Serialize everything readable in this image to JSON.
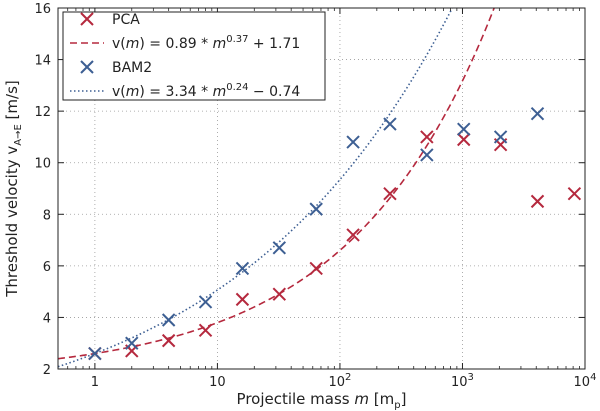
{
  "chart_data": {
    "type": "scatter",
    "x_scale": "log",
    "xlim": [
      0.5,
      10000
    ],
    "ylim": [
      2,
      16
    ],
    "grid": true,
    "legend_placement": "top-left",
    "xlabel": "Projectile mass m [m_p]",
    "ylabel": "Threshold velocity v_{A→E} [m/s]",
    "x_ticks": [
      1,
      10,
      100,
      1000,
      10000
    ],
    "x_tick_labels": [
      "1",
      "10",
      "10^2",
      "10^3",
      "10^4"
    ],
    "y_ticks": [
      2,
      4,
      6,
      8,
      10,
      12,
      14,
      16
    ],
    "series": [
      {
        "name": "PCA",
        "marker": "x",
        "color": "#b5293e",
        "x": [
          1,
          2,
          4,
          8,
          16,
          32,
          64,
          128,
          256,
          512,
          1024,
          2048,
          4096,
          8192
        ],
        "y": [
          2.6,
          2.7,
          3.1,
          3.5,
          4.7,
          4.9,
          5.9,
          7.2,
          8.8,
          11.0,
          10.9,
          10.7,
          8.5,
          8.8
        ]
      },
      {
        "name": "BAM2",
        "marker": "x",
        "color": "#3d5f93",
        "x": [
          1,
          2,
          4,
          8,
          16,
          32,
          64,
          128,
          256,
          512,
          1024,
          2048,
          4096
        ],
        "y": [
          2.6,
          3.0,
          3.9,
          4.6,
          5.9,
          6.7,
          8.2,
          10.8,
          11.5,
          10.3,
          11.3,
          11.0,
          11.9
        ]
      }
    ],
    "fits": [
      {
        "label": "v(m) = 0.89 * m^0.37 + 1.71",
        "style": "dashed",
        "color": "#b5293e",
        "a": 0.89,
        "b": 0.37,
        "c": 1.71
      },
      {
        "label": "v(m) = 3.34 * m^0.24 − 0.74",
        "style": "dotted",
        "color": "#3d5f93",
        "a": 3.34,
        "b": 0.24,
        "c": -0.74
      }
    ],
    "legend": [
      {
        "label": "PCA",
        "kind": "marker"
      },
      {
        "label": "v(m) = 0.89 * m^0.37 + 1.71",
        "kind": "dashed"
      },
      {
        "label": "BAM2",
        "kind": "marker"
      },
      {
        "label": "v(m) = 3.34 * m^0.24 − 0.74",
        "kind": "dotted"
      }
    ]
  }
}
